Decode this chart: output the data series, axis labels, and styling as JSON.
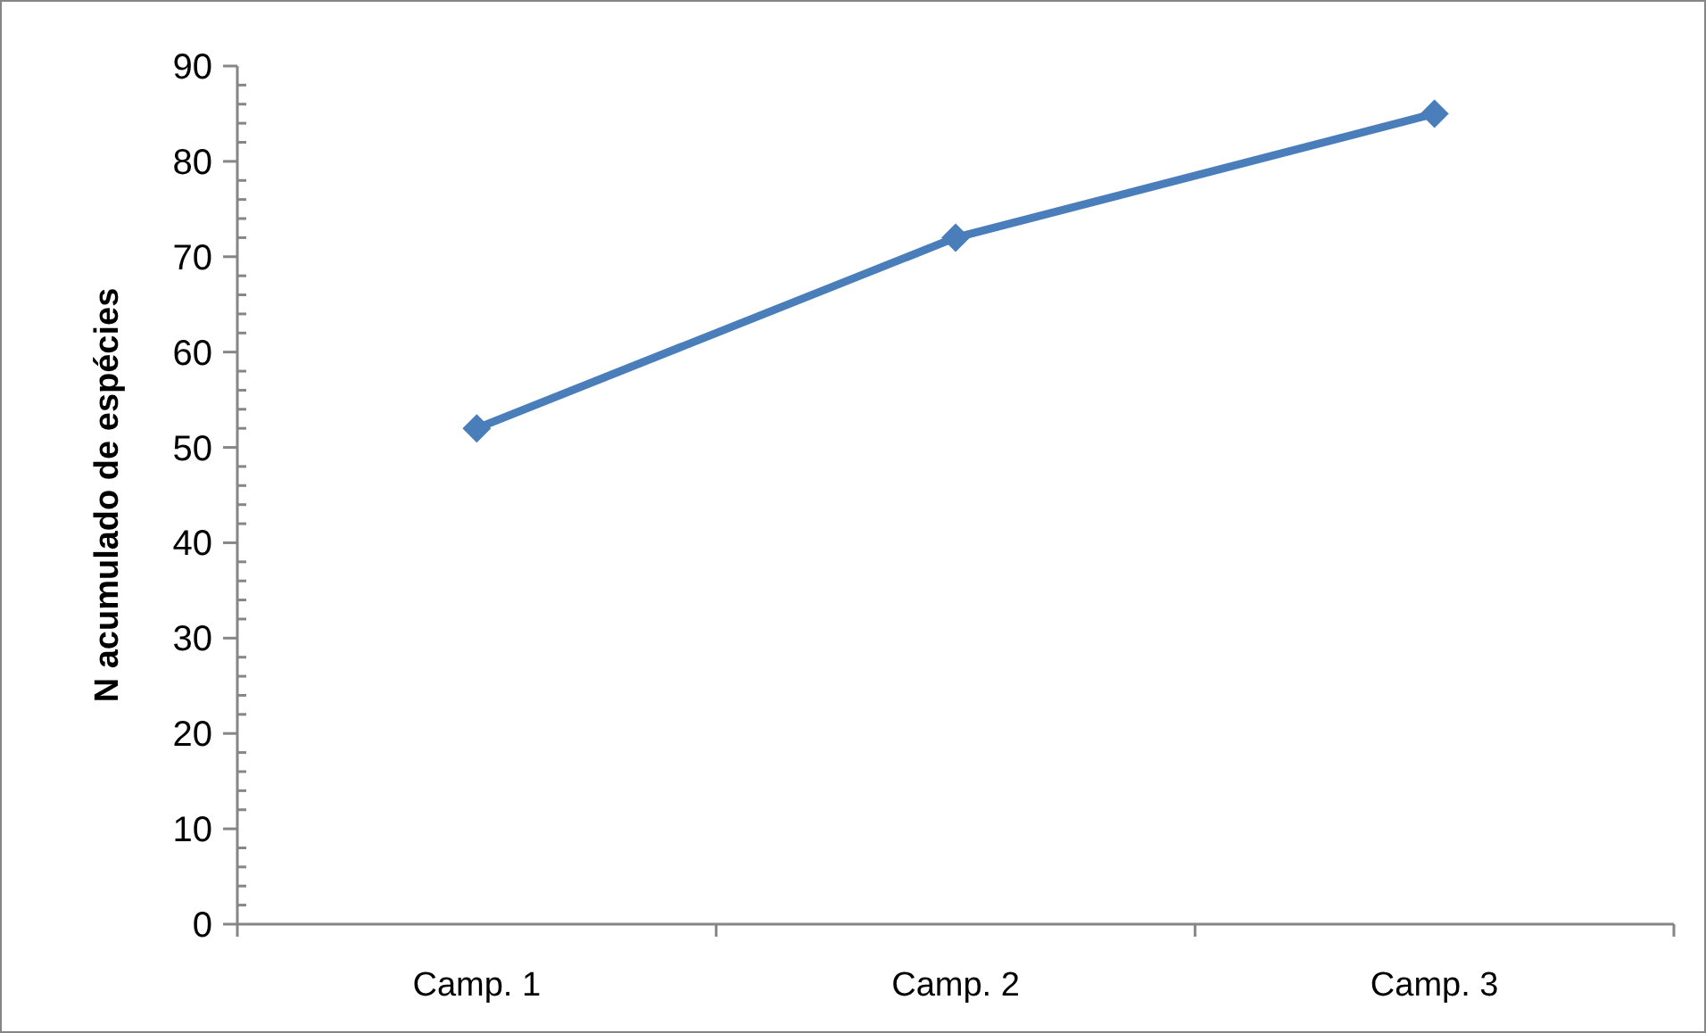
{
  "chart_data": {
    "type": "line",
    "ylabel": "N acumulado de espécies",
    "categories": [
      "Camp. 1",
      "Camp. 2",
      "Camp. 3"
    ],
    "series": [
      {
        "color": "#4a7ebb",
        "values": [
          52,
          72,
          85
        ]
      }
    ],
    "ylim": [
      0,
      90
    ],
    "yticks": [
      0,
      {
        "value": 2,
        "label": null
      },
      {
        "value": 4,
        "label": null
      },
      {
        "value": 6,
        "label": null
      },
      {
        "value": 8,
        "label": null
      },
      10,
      {
        "value": 12,
        "label": null
      },
      {
        "value": 14,
        "label": null
      },
      {
        "value": 16,
        "label": null
      },
      {
        "value": 18,
        "label": null
      },
      20,
      {
        "value": 22,
        "label": null
      },
      {
        "value": 24,
        "label": null
      },
      {
        "value": 26,
        "label": null
      },
      {
        "value": 28,
        "label": null
      },
      30,
      {
        "value": 32,
        "label": null
      },
      {
        "value": 34,
        "label": null
      },
      {
        "value": 36,
        "label": null
      },
      {
        "value": 38,
        "label": null
      },
      40,
      {
        "value": 42,
        "label": null
      },
      {
        "value": 44,
        "label": null
      },
      {
        "value": 46,
        "label": null
      },
      {
        "value": 48,
        "label": null
      },
      50,
      {
        "value": 52,
        "label": null
      },
      {
        "value": 54,
        "label": null
      },
      {
        "value": 56,
        "label": null
      },
      {
        "value": 58,
        "label": null
      },
      60,
      {
        "value": 62,
        "label": null
      },
      {
        "value": 64,
        "label": null
      },
      {
        "value": 66,
        "label": null
      },
      {
        "value": 68,
        "label": null
      },
      70,
      {
        "value": 72,
        "label": null
      },
      {
        "value": 74,
        "label": null
      },
      {
        "value": 76,
        "label": null
      },
      {
        "value": 78,
        "label": null
      },
      80,
      {
        "value": 82,
        "label": null
      },
      {
        "value": 84,
        "label": null
      },
      {
        "value": 86,
        "label": null
      },
      {
        "value": 88,
        "label": null
      },
      90
    ],
    "grid": false,
    "marker": "diamond",
    "line_style": "solid"
  }
}
